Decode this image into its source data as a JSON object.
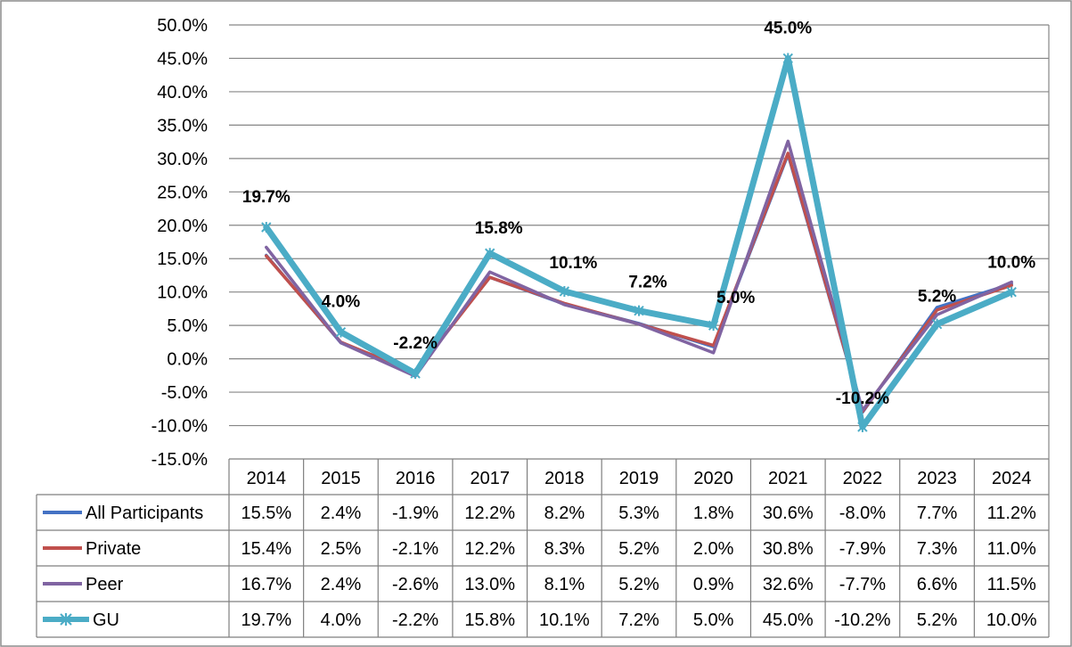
{
  "chart_data": {
    "type": "line",
    "title": "",
    "xlabel": "",
    "ylabel": "",
    "ylim": [
      -15,
      50
    ],
    "ytick_step": 5,
    "ytick_labels": [
      "-15.0%",
      "-10.0%",
      "-5.0%",
      "0.0%",
      "5.0%",
      "10.0%",
      "15.0%",
      "20.0%",
      "25.0%",
      "30.0%",
      "35.0%",
      "40.0%",
      "45.0%",
      "50.0%"
    ],
    "categories": [
      "2014",
      "2015",
      "2016",
      "2017",
      "2018",
      "2019",
      "2020",
      "2021",
      "2022",
      "2023",
      "2024"
    ],
    "grid": true,
    "legend": "data-table",
    "series": [
      {
        "name": "All Participants",
        "color": "#4472c4",
        "values": [
          15.5,
          2.4,
          -1.9,
          12.2,
          8.2,
          5.3,
          1.8,
          30.6,
          -8.0,
          7.7,
          11.2
        ],
        "table_values": [
          "15.5%",
          "2.4%",
          "-1.9%",
          "12.2%",
          "8.2%",
          "5.3%",
          "1.8%",
          "30.6%",
          "-8.0%",
          "7.7%",
          "11.2%"
        ]
      },
      {
        "name": "Private",
        "color": "#c0504d",
        "values": [
          15.4,
          2.5,
          -2.1,
          12.2,
          8.3,
          5.2,
          2.0,
          30.8,
          -7.9,
          7.3,
          11.0
        ],
        "table_values": [
          "15.4%",
          "2.5%",
          "-2.1%",
          "12.2%",
          "8.3%",
          "5.2%",
          "2.0%",
          "30.8%",
          "-7.9%",
          "7.3%",
          "11.0%"
        ]
      },
      {
        "name": "Peer",
        "color": "#8064a2",
        "values": [
          16.7,
          2.4,
          -2.6,
          13.0,
          8.1,
          5.2,
          0.9,
          32.6,
          -7.7,
          6.6,
          11.5
        ],
        "table_values": [
          "16.7%",
          "2.4%",
          "-2.6%",
          "13.0%",
          "8.1%",
          "5.2%",
          "0.9%",
          "32.6%",
          "-7.7%",
          "6.6%",
          "11.5%"
        ]
      },
      {
        "name": "GU",
        "color": "#4bacc6",
        "marker": "star",
        "values": [
          19.7,
          4.0,
          -2.2,
          15.8,
          10.1,
          7.2,
          5.0,
          45.0,
          -10.2,
          5.2,
          10.0
        ],
        "table_values": [
          "19.7%",
          "4.0%",
          "-2.2%",
          "15.8%",
          "10.1%",
          "7.2%",
          "5.0%",
          "45.0%",
          "-10.2%",
          "5.2%",
          "10.0%"
        ],
        "data_labels": [
          "19.7%",
          "4.0%",
          "-2.2%",
          "15.8%",
          "10.1%",
          "7.2%",
          "5.0%",
          "45.0%",
          "-10.2%",
          "5.2%",
          "10.0%"
        ]
      }
    ]
  }
}
